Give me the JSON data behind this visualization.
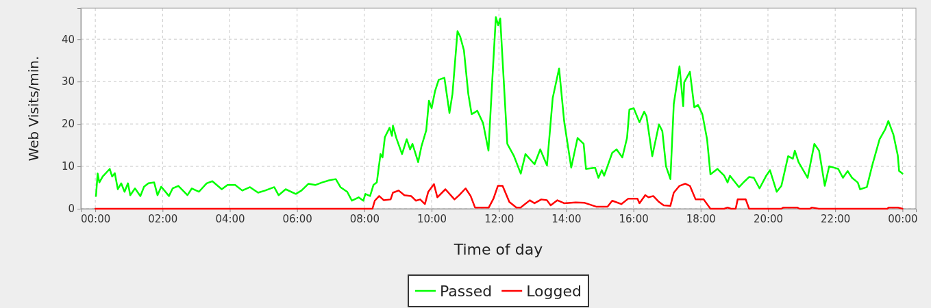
{
  "chart_data": {
    "type": "line",
    "xlabel": "Time of day",
    "ylabel": "Web Visits/min.",
    "xlim": [
      -0.43,
      24.4
    ],
    "ylim": [
      0,
      47.3
    ],
    "xticks": [
      {
        "value": 0,
        "label": "00:00"
      },
      {
        "value": 2,
        "label": "02:00"
      },
      {
        "value": 4,
        "label": "04:00"
      },
      {
        "value": 6,
        "label": "06:00"
      },
      {
        "value": 8,
        "label": "08:00"
      },
      {
        "value": 10,
        "label": "10:00"
      },
      {
        "value": 12,
        "label": "12:00"
      },
      {
        "value": 14,
        "label": "14:00"
      },
      {
        "value": 16,
        "label": "16:00"
      },
      {
        "value": 18,
        "label": "18:00"
      },
      {
        "value": 20,
        "label": "20:00"
      },
      {
        "value": 22,
        "label": "22:00"
      },
      {
        "value": 24,
        "label": "00:00"
      }
    ],
    "yticks": [
      0,
      10,
      20,
      30,
      40
    ],
    "grid": true,
    "legend": "bottom",
    "marker": "none",
    "series": [
      {
        "name": "Passed",
        "color": "#00ff00",
        "x": [
          0.02,
          0.07,
          0.12,
          0.22,
          0.43,
          0.5,
          0.58,
          0.67,
          0.77,
          0.87,
          0.97,
          1.04,
          1.18,
          1.34,
          1.45,
          1.58,
          1.75,
          1.85,
          1.96,
          2.19,
          2.3,
          2.47,
          2.74,
          2.87,
          3.08,
          3.31,
          3.48,
          3.76,
          3.93,
          4.16,
          4.37,
          4.6,
          4.84,
          5.05,
          5.32,
          5.45,
          5.66,
          5.96,
          6.13,
          6.34,
          6.54,
          6.74,
          6.95,
          7.15,
          7.29,
          7.49,
          7.63,
          7.83,
          7.97,
          8.03,
          8.17,
          8.27,
          8.37,
          8.48,
          8.54,
          8.61,
          8.75,
          8.82,
          8.85,
          8.95,
          9.12,
          9.26,
          9.36,
          9.43,
          9.6,
          9.7,
          9.84,
          9.92,
          10.0,
          10.1,
          10.21,
          10.38,
          10.53,
          10.62,
          10.77,
          10.85,
          10.96,
          11.09,
          11.19,
          11.36,
          11.53,
          11.69,
          11.8,
          11.91,
          11.98,
          12.04,
          12.25,
          12.45,
          12.65,
          12.79,
          13.06,
          13.23,
          13.43,
          13.6,
          13.79,
          13.94,
          14.15,
          14.34,
          14.52,
          14.59,
          14.86,
          14.96,
          15.06,
          15.13,
          15.37,
          15.5,
          15.67,
          15.81,
          15.88,
          16.01,
          16.18,
          16.32,
          16.39,
          16.56,
          16.76,
          16.86,
          16.97,
          17.1,
          17.2,
          17.37,
          17.48,
          17.51,
          17.68,
          17.81,
          17.92,
          18.05,
          18.19,
          18.29,
          18.5,
          18.7,
          18.8,
          18.87,
          19.14,
          19.31,
          19.44,
          19.58,
          19.75,
          19.95,
          20.06,
          20.26,
          20.4,
          20.6,
          20.74,
          20.8,
          20.91,
          21.18,
          21.38,
          21.52,
          21.69,
          21.82,
          21.96,
          22.09,
          22.23,
          22.37,
          22.5,
          22.67,
          22.74,
          22.94,
          23.11,
          23.32,
          23.49,
          23.58,
          23.73,
          23.86,
          23.9,
          24.0
        ],
        "values": [
          3.0,
          8.3,
          6.2,
          7.6,
          9.4,
          7.6,
          8.4,
          4.6,
          6.0,
          4.0,
          6.0,
          3.2,
          4.8,
          3.0,
          5.2,
          6.0,
          6.2,
          3.2,
          5.2,
          3.0,
          4.8,
          5.4,
          3.2,
          4.8,
          4.0,
          6.0,
          6.5,
          4.6,
          5.6,
          5.6,
          4.3,
          5.1,
          3.8,
          4.3,
          5.1,
          3.2,
          4.6,
          3.5,
          4.3,
          5.9,
          5.6,
          6.2,
          6.7,
          7.0,
          5.1,
          4.0,
          1.9,
          2.7,
          1.9,
          3.5,
          3.0,
          5.6,
          6.2,
          12.9,
          12.1,
          16.9,
          19.1,
          17.2,
          19.6,
          16.7,
          12.9,
          16.4,
          14.0,
          15.3,
          11.0,
          14.8,
          18.5,
          25.5,
          23.7,
          27.7,
          30.4,
          30.9,
          22.6,
          27.1,
          41.9,
          40.6,
          37.4,
          27.1,
          22.3,
          23.1,
          20.2,
          13.7,
          29.8,
          45.2,
          43.3,
          44.9,
          15.3,
          12.4,
          8.3,
          12.9,
          10.5,
          14.0,
          10.2,
          26.1,
          33.1,
          20.7,
          9.7,
          16.7,
          15.3,
          9.4,
          9.7,
          7.3,
          9.1,
          7.8,
          13.2,
          14.0,
          12.1,
          16.7,
          23.4,
          23.7,
          20.4,
          22.9,
          21.8,
          12.4,
          19.9,
          18.3,
          10.0,
          7.0,
          24.7,
          33.6,
          24.2,
          29.8,
          32.3,
          23.9,
          24.5,
          22.3,
          16.4,
          8.1,
          9.4,
          7.8,
          6.2,
          7.8,
          5.1,
          6.5,
          7.5,
          7.3,
          4.8,
          7.8,
          9.1,
          4.0,
          5.4,
          12.4,
          11.8,
          13.7,
          11.0,
          7.3,
          15.3,
          13.7,
          5.4,
          10.0,
          9.7,
          9.4,
          7.3,
          8.9,
          7.3,
          6.2,
          4.6,
          5.1,
          10.5,
          16.4,
          18.8,
          20.7,
          17.5,
          12.6,
          8.9,
          8.3
        ]
      },
      {
        "name": "Logged",
        "color": "#ff0000",
        "x": [
          0,
          8.24,
          8.31,
          8.44,
          8.58,
          8.78,
          8.85,
          9.02,
          9.19,
          9.39,
          9.53,
          9.66,
          9.8,
          9.9,
          10.07,
          10.17,
          10.41,
          10.68,
          10.82,
          11.01,
          11.16,
          11.29,
          11.7,
          11.84,
          11.97,
          12.11,
          12.31,
          12.52,
          12.65,
          12.92,
          13.06,
          13.26,
          13.43,
          13.54,
          13.74,
          13.94,
          14.28,
          14.55,
          14.89,
          15.23,
          15.37,
          15.64,
          15.85,
          16.12,
          16.18,
          16.35,
          16.45,
          16.59,
          16.76,
          16.9,
          17.1,
          17.2,
          17.37,
          17.54,
          17.68,
          17.85,
          18.09,
          18.29,
          18.7,
          18.8,
          18.9,
          19.04,
          19.1,
          19.34,
          19.44,
          20.4,
          20.46,
          20.87,
          20.94,
          21.25,
          21.3,
          21.51,
          23.55,
          23.59,
          23.86,
          24.0
        ],
        "values": [
          0,
          0,
          1.9,
          3.0,
          2.0,
          2.2,
          3.8,
          4.3,
          3.2,
          3.0,
          1.9,
          2.2,
          1.1,
          4.0,
          5.8,
          2.7,
          4.6,
          2.2,
          3.2,
          4.8,
          3.0,
          0.3,
          0.3,
          2.4,
          5.4,
          5.4,
          1.6,
          0.3,
          0.3,
          2.0,
          1.3,
          2.2,
          2.0,
          0.8,
          2.0,
          1.3,
          1.5,
          1.4,
          0.5,
          0.5,
          1.9,
          1.1,
          2.4,
          2.4,
          1.3,
          3.2,
          2.7,
          3.0,
          1.6,
          0.8,
          0.7,
          3.8,
          5.4,
          5.9,
          5.4,
          2.2,
          2.2,
          0,
          0,
          0.3,
          0,
          0,
          2.2,
          2.2,
          0,
          0,
          0.3,
          0.3,
          0,
          0,
          0.3,
          0,
          0,
          0.3,
          0.3,
          0
        ]
      }
    ]
  }
}
